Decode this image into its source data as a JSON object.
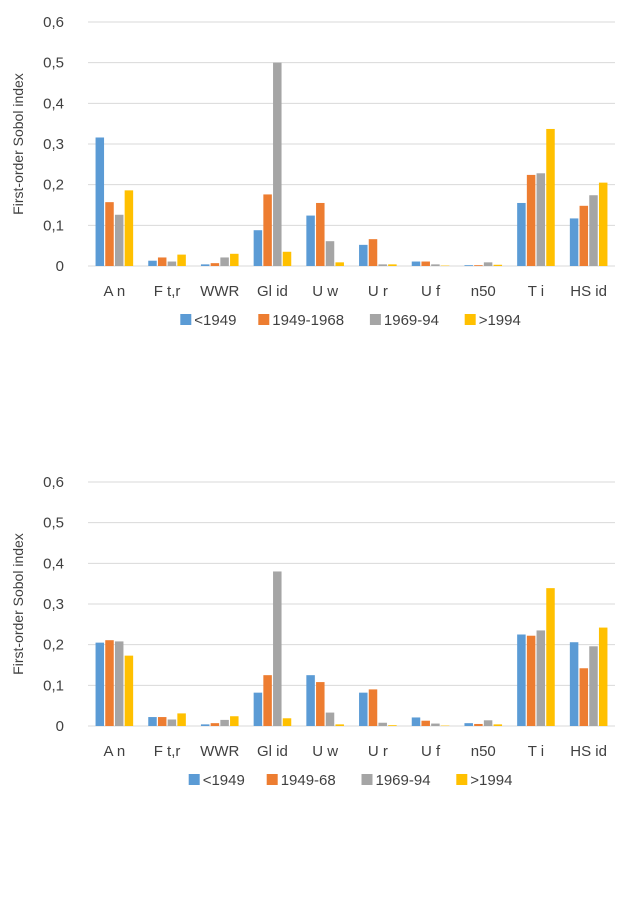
{
  "colors": [
    "#5B9BD5",
    "#ED7D31",
    "#A5A5A5",
    "#FFC000"
  ],
  "chart_data": [
    {
      "type": "bar",
      "ylabel": "First-order Sobol index",
      "ylim": [
        0,
        0.6
      ],
      "yticks": [
        "0",
        "0,1",
        "0,2",
        "0,3",
        "0,4",
        "0,5",
        "0,6"
      ],
      "grid": true,
      "legend_position": "bottom",
      "categories": [
        "A n",
        "F t,r",
        "WWR",
        "Gl id",
        "U w",
        "U r",
        "U f",
        "n50",
        "T i",
        "HS id"
      ],
      "series": [
        {
          "name": "<1949",
          "values": [
            0.316,
            0.013,
            0.004,
            0.088,
            0.124,
            0.052,
            0.011,
            0.002,
            0.155,
            0.117
          ]
        },
        {
          "name": "1949-1968",
          "values": [
            0.157,
            0.021,
            0.007,
            0.176,
            0.155,
            0.066,
            0.011,
            0.002,
            0.224,
            0.148
          ]
        },
        {
          "name": "1969-94",
          "values": [
            0.126,
            0.011,
            0.021,
            0.5,
            0.061,
            0.004,
            0.004,
            0.009,
            0.228,
            0.174
          ]
        },
        {
          "name": ">1994",
          "values": [
            0.186,
            0.028,
            0.03,
            0.035,
            0.009,
            0.004,
            0.001,
            0.003,
            0.337,
            0.205
          ]
        }
      ]
    },
    {
      "type": "bar",
      "ylabel": "First-order Sobol index",
      "ylim": [
        0,
        0.6
      ],
      "yticks": [
        "0",
        "0,1",
        "0,2",
        "0,3",
        "0,4",
        "0,5",
        "0,6"
      ],
      "grid": true,
      "legend_position": "bottom",
      "categories": [
        "A n",
        "F t,r",
        "WWR",
        "Gl id",
        "U w",
        "U r",
        "U f",
        "n50",
        "T i",
        "HS id"
      ],
      "series": [
        {
          "name": "<1949",
          "values": [
            0.205,
            0.022,
            0.004,
            0.082,
            0.125,
            0.082,
            0.021,
            0.007,
            0.225,
            0.206
          ]
        },
        {
          "name": "1949-68",
          "values": [
            0.211,
            0.022,
            0.007,
            0.125,
            0.108,
            0.09,
            0.013,
            0.005,
            0.222,
            0.142
          ]
        },
        {
          "name": "1969-94",
          "values": [
            0.208,
            0.016,
            0.015,
            0.38,
            0.033,
            0.008,
            0.006,
            0.014,
            0.235,
            0.196
          ]
        },
        {
          "name": ">1994",
          "values": [
            0.173,
            0.031,
            0.024,
            0.019,
            0.004,
            0.002,
            0.001,
            0.004,
            0.339,
            0.242
          ]
        }
      ]
    }
  ]
}
